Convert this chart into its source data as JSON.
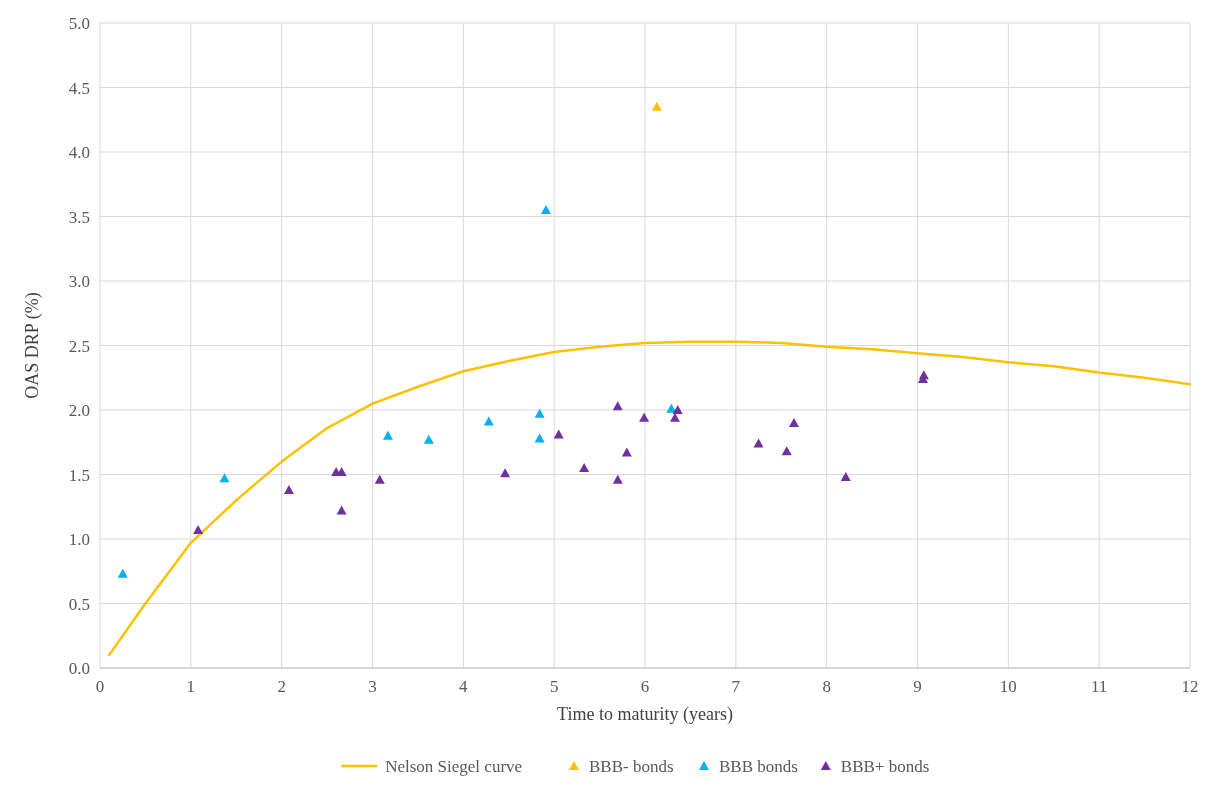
{
  "chart_data": {
    "type": "scatter",
    "xlabel": "Time to maturity (years)",
    "ylabel": "OAS DRP (%)",
    "xlim": [
      0,
      12
    ],
    "xticks": [
      0,
      1,
      2,
      3,
      4,
      5,
      6,
      7,
      8,
      9,
      10,
      11,
      12
    ],
    "ylim": [
      0,
      5
    ],
    "yticks": [
      {
        "value": 0,
        "label": "0.0"
      },
      {
        "value": 0.5,
        "label": "0.5"
      },
      {
        "value": 1,
        "label": "1.0"
      },
      {
        "value": 1.5,
        "label": "1.5"
      },
      {
        "value": 2,
        "label": "2.0"
      },
      {
        "value": 2.5,
        "label": "2.5"
      },
      {
        "value": 3,
        "label": "3.0"
      },
      {
        "value": 3.5,
        "label": "3.5"
      },
      {
        "value": 4,
        "label": "4.0"
      },
      {
        "value": 4.5,
        "label": "4.5"
      },
      {
        "value": 5,
        "label": "5.0"
      }
    ],
    "grid": true,
    "legend": "bottom",
    "marker": "triangle",
    "series": [
      {
        "name": "Nelson Siegel curve",
        "type": "line",
        "marker": "none",
        "color": "#ffc000",
        "x": [
          0.1,
          0.5,
          1,
          1.5,
          2,
          2.5,
          3,
          3.5,
          4,
          4.5,
          5,
          5.5,
          6,
          6.5,
          7,
          7.5,
          8,
          8.5,
          9,
          9.5,
          10,
          10.5,
          11,
          11.5,
          12
        ],
        "values": [
          0.1,
          0.5,
          0.97,
          1.3,
          1.6,
          1.86,
          2.05,
          2.18,
          2.3,
          2.38,
          2.45,
          2.49,
          2.52,
          2.53,
          2.53,
          2.52,
          2.49,
          2.47,
          2.44,
          2.41,
          2.37,
          2.34,
          2.29,
          2.25,
          2.2
        ]
      },
      {
        "name": "BBB- bonds",
        "color": "#ffc000",
        "x": [
          6.13
        ],
        "values": [
          4.35
        ]
      },
      {
        "name": "BBB bonds",
        "color": "#00b0f0",
        "x": [
          0.25,
          1.37,
          3.17,
          3.62,
          4.28,
          4.84,
          4.84,
          4.91,
          6.29
        ],
        "values": [
          0.73,
          1.47,
          1.8,
          1.77,
          1.91,
          1.97,
          1.78,
          3.55,
          2.01
        ]
      },
      {
        "name": "BBB+ bonds",
        "color": "#7030a0",
        "x": [
          1.08,
          2.08,
          2.6,
          2.66,
          2.66,
          3.08,
          4.46,
          5.05,
          5.33,
          5.7,
          5.7,
          5.8,
          5.99,
          6.33,
          6.36,
          7.25,
          7.56,
          7.64,
          8.21,
          9.06,
          9.07
        ],
        "values": [
          1.07,
          1.38,
          1.52,
          1.52,
          1.22,
          1.46,
          1.51,
          1.81,
          1.55,
          2.03,
          1.46,
          1.67,
          1.94,
          1.94,
          2.0,
          1.74,
          1.68,
          1.9,
          1.48,
          2.24,
          2.27
        ]
      }
    ]
  }
}
